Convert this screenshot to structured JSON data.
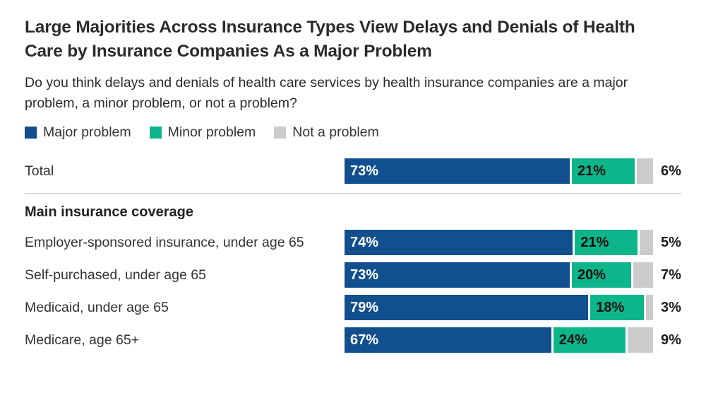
{
  "header": {
    "title": "Large Majorities Across Insurance Types View Delays and Denials of Health Care by Insurance Companies As a Major Problem",
    "subtitle": "Do you think delays and denials of health care services by health insurance companies are a major problem, a minor problem, or not a problem?"
  },
  "legend": {
    "items": [
      {
        "label": "Major problem",
        "color": "#114F8E",
        "icon": "legend-swatch-major"
      },
      {
        "label": "Minor problem",
        "color": "#0DB58A",
        "icon": "legend-swatch-minor"
      },
      {
        "label": "Not a problem",
        "color": "#CBCBCB",
        "icon": "legend-swatch-not"
      }
    ]
  },
  "chart_data": {
    "type": "bar",
    "orientation": "horizontal-stacked",
    "title": "Large Majorities Across Insurance Types View Delays and Denials of Health Care by Insurance Companies As a Major Problem",
    "series_names": [
      "Major problem",
      "Minor problem",
      "Not a problem"
    ],
    "colors": {
      "major": "#114F8E",
      "minor": "#0DB58A",
      "not_a_problem": "#CBCBCB"
    },
    "xlim": [
      0,
      100
    ],
    "value_suffix": "%",
    "legend_position": "top",
    "grid": false,
    "groups": [
      {
        "header": null,
        "rows": [
          {
            "label": "Total",
            "values": [
              73,
              21,
              6
            ]
          }
        ]
      },
      {
        "header": "Main insurance coverage",
        "rows": [
          {
            "label": "Employer-sponsored insurance, under age 65",
            "values": [
              74,
              21,
              5
            ]
          },
          {
            "label": "Self-purchased, under age 65",
            "values": [
              73,
              20,
              7
            ]
          },
          {
            "label": "Medicaid, under age 65",
            "values": [
              79,
              18,
              3
            ]
          },
          {
            "label": "Medicare, age 65+",
            "values": [
              67,
              24,
              9
            ]
          }
        ]
      }
    ]
  }
}
